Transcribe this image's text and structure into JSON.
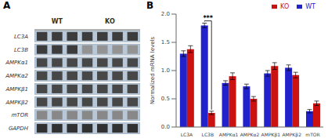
{
  "chart_data": [
    {
      "type": "heatmap",
      "title": "A",
      "categories": [
        "LC3A",
        "LC3B",
        "AMPKα1",
        "AMPKα2",
        "AMPKβ1",
        "AMPKβ2",
        "mTOR",
        "GAPDH"
      ],
      "series": [
        {
          "name": "WT",
          "values": [
            [
              0.9,
              0.9,
              0.9
            ],
            [
              0.9,
              0.9,
              0.9
            ],
            [
              0.85,
              0.85,
              0.85
            ],
            [
              0.85,
              0.85,
              0.85
            ],
            [
              0.85,
              0.85,
              0.85
            ],
            [
              0.85,
              0.85,
              0.85
            ],
            [
              0.55,
              0.55,
              0.55
            ],
            [
              0.95,
              0.95,
              0.95
            ]
          ]
        },
        {
          "name": "KO",
          "values": [
            [
              0.9,
              0.9,
              0.9,
              0.9
            ],
            [
              0.5,
              0.5,
              0.5,
              0.5
            ],
            [
              0.85,
              0.85,
              0.85,
              0.85
            ],
            [
              0.85,
              0.85,
              0.85,
              0.85
            ],
            [
              0.85,
              0.85,
              0.85,
              0.85
            ],
            [
              0.85,
              0.85,
              0.85,
              0.85
            ],
            [
              0.55,
              0.55,
              0.55,
              0.55
            ],
            [
              0.95,
              0.95,
              0.95,
              0.95
            ]
          ]
        }
      ],
      "tick_labels": "y"
    },
    {
      "type": "bar",
      "title": "B",
      "categories": [
        "LC3A",
        "LC3B",
        "AMPKα1",
        "AMPKα2",
        "AMPKβ1",
        "AMPKβ2",
        "mTOR"
      ],
      "series": [
        {
          "name": "WT",
          "color": "#2222cc",
          "values": [
            1.3,
            1.8,
            0.78,
            0.72,
            0.95,
            1.05,
            0.28
          ],
          "errors": [
            0.05,
            0.04,
            0.04,
            0.04,
            0.05,
            0.05,
            0.03
          ]
        },
        {
          "name": "KO",
          "color": "#cc1111",
          "values": [
            1.38,
            0.25,
            0.9,
            0.5,
            1.08,
            0.92,
            0.42
          ],
          "errors": [
            0.06,
            0.03,
            0.06,
            0.04,
            0.06,
            0.05,
            0.04
          ]
        }
      ],
      "ylabel": "Normalized mRNA levels",
      "ylim": [
        0,
        2.0
      ],
      "yticks": [
        {
          "value": 0,
          "label": "0.0"
        },
        0.5,
        {
          "value": 1,
          "label": "1.0"
        },
        1.5,
        {
          "value": 2,
          "label": "2.0"
        }
      ],
      "legend": "upper right",
      "annotations": [
        {
          "text": "***",
          "category": "LC3B",
          "y": 1.88
        }
      ]
    }
  ]
}
